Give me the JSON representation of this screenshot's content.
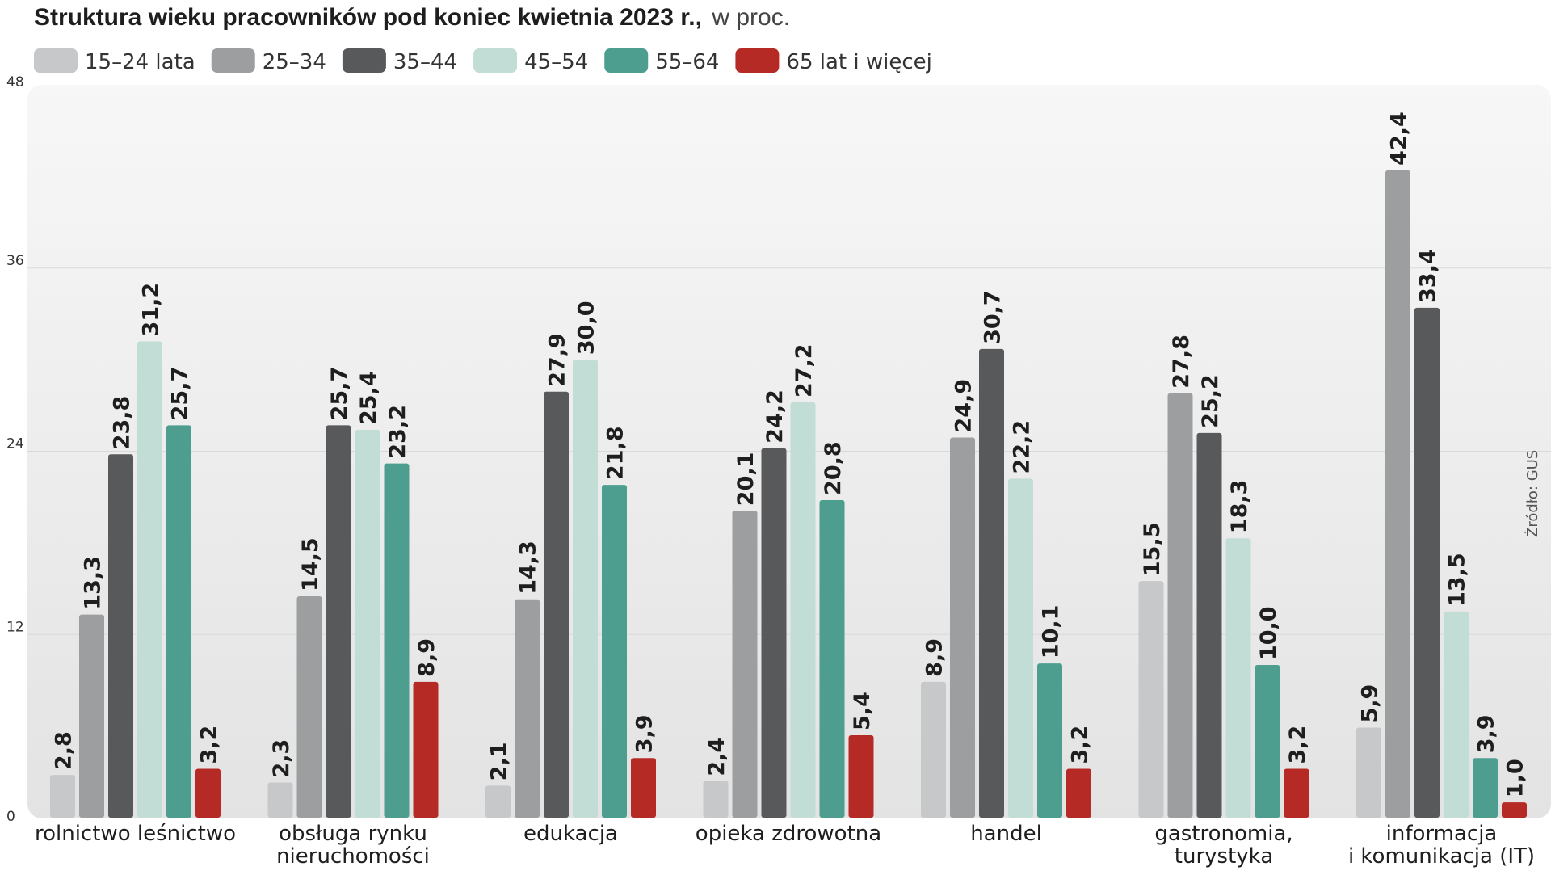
{
  "chart_data": {
    "type": "bar",
    "title": "Struktura wieku pracowników pod koniec kwietnia 2023 r.,",
    "subtitle": "w proc.",
    "source": "Źródło: GUS",
    "ylim": [
      0,
      48
    ],
    "yticks": [
      "0",
      "12",
      "24",
      "36",
      "48"
    ],
    "categories": [
      [
        "rolnictwo leśnictwo"
      ],
      [
        "obsługa rynku",
        "nieruchomości"
      ],
      [
        "edukacja"
      ],
      [
        "opieka zdrowotna"
      ],
      [
        "handel"
      ],
      [
        "gastronomia,",
        "turystyka"
      ],
      [
        "informacja",
        "i komunikacja (IT)"
      ]
    ],
    "series": [
      {
        "name": "15–24 lata",
        "color": "#c7c8ca",
        "values": [
          2.8,
          2.3,
          2.1,
          2.4,
          8.9,
          15.5,
          5.9
        ],
        "labels": [
          "2,8",
          "2,3",
          "2,1",
          "2,4",
          "8,9",
          "15,5",
          "5,9"
        ]
      },
      {
        "name": "25–34",
        "color": "#9d9ea0",
        "values": [
          13.3,
          14.5,
          14.3,
          20.1,
          24.9,
          27.8,
          42.4
        ],
        "labels": [
          "13,3",
          "14,5",
          "14,3",
          "20,1",
          "24,9",
          "27,8",
          "42,4"
        ]
      },
      {
        "name": "35–44",
        "color": "#58595b",
        "values": [
          23.8,
          25.7,
          27.9,
          24.2,
          30.7,
          25.2,
          33.4
        ],
        "labels": [
          "23,8",
          "25,7",
          "27,9",
          "24,2",
          "30,7",
          "25,2",
          "33,4"
        ]
      },
      {
        "name": "45–54",
        "color": "#c2ddd5",
        "values": [
          31.2,
          25.4,
          30.0,
          27.2,
          22.2,
          18.3,
          13.5
        ],
        "labels": [
          "31,2",
          "25,4",
          "30,0",
          "27,2",
          "22,2",
          "18,3",
          "13,5"
        ]
      },
      {
        "name": "55–64",
        "color": "#4e9e90",
        "values": [
          25.7,
          23.2,
          21.8,
          20.8,
          10.1,
          10.0,
          3.9
        ],
        "labels": [
          "25,7",
          "23,2",
          "21,8",
          "20,8",
          "10,1",
          "10,0",
          "3,9"
        ]
      },
      {
        "name": "65 lat i więcej",
        "color": "#b62a25",
        "values": [
          3.2,
          8.9,
          3.9,
          5.4,
          3.2,
          3.2,
          1.0
        ],
        "labels": [
          "3,2",
          "8,9",
          "3,9",
          "5,4",
          "3,2",
          "3,2",
          "1,0"
        ]
      }
    ]
  }
}
